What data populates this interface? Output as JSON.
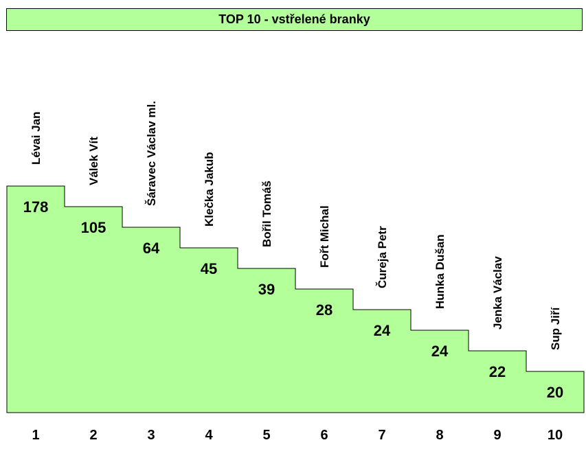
{
  "title": "TOP 10 - vstřelené branky",
  "colors": {
    "fill": "#b3ff99",
    "stroke": "#000000",
    "text": "#000000"
  },
  "chart_data": {
    "type": "bar",
    "title": "TOP 10 - vstřelené branky",
    "categories": [
      "1",
      "2",
      "3",
      "4",
      "5",
      "6",
      "7",
      "8",
      "9",
      "10"
    ],
    "names": [
      "Lévai Jan",
      "Válek Vít",
      "Šáravec Václav ml.",
      "Klečka Jakub",
      "Bořil Tomáš",
      "Fořt Michal",
      "Čureja Petr",
      "Hunka Dušan",
      "Jenka Václav",
      "Sup Jiří"
    ],
    "values": [
      178,
      105,
      64,
      45,
      39,
      28,
      24,
      24,
      22,
      20
    ]
  }
}
